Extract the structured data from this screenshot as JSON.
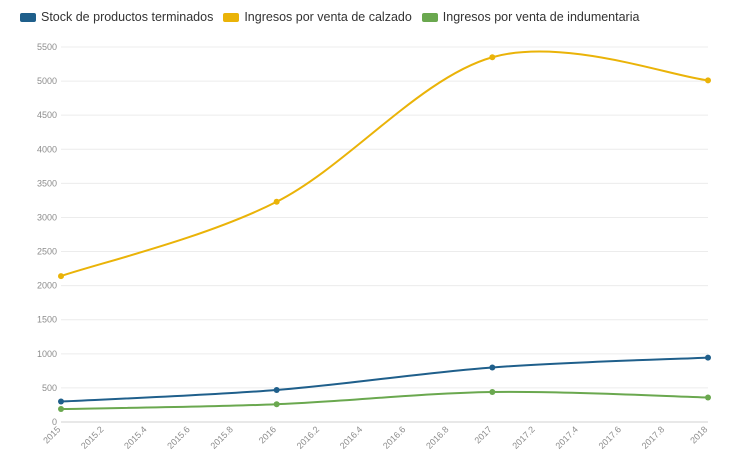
{
  "chart_data": {
    "type": "line",
    "title": "",
    "xlabel": "",
    "ylabel": "",
    "xlim": [
      2015,
      2018
    ],
    "ylim": [
      0,
      5500
    ],
    "grid": true,
    "legend_position": "top-left",
    "x_ticks": [
      "2015",
      "2015.2",
      "2015.4",
      "2015.6",
      "2015.8",
      "2016",
      "2016.2",
      "2016.4",
      "2016.6",
      "2016.8",
      "2017",
      "2017.2",
      "2017.4",
      "2017.6",
      "2017.8",
      "2018"
    ],
    "y_ticks": [
      "0",
      "500",
      "1000",
      "1500",
      "2000",
      "2500",
      "3000",
      "3500",
      "4000",
      "4500",
      "5000",
      "5500"
    ],
    "x": [
      2015,
      2016,
      2017,
      2018
    ],
    "series": [
      {
        "name": "Stock de productos terminados",
        "color": "#1f5f8b",
        "values": [
          300,
          470,
          800,
          945
        ]
      },
      {
        "name": "Ingresos por venta de calzado",
        "color": "#eab308",
        "values": [
          2140,
          3230,
          5350,
          5010
        ]
      },
      {
        "name": "Ingresos por venta de indumentaria",
        "color": "#6aa84f",
        "values": [
          190,
          260,
          440,
          360
        ]
      }
    ]
  }
}
